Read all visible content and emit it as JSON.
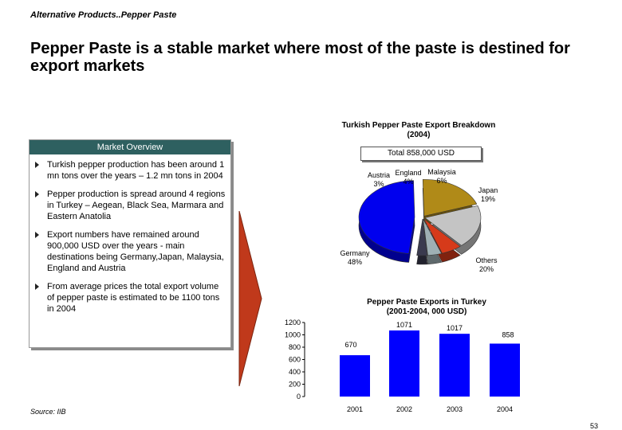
{
  "breadcrumb": "Alternative Products..Pepper Paste",
  "headline": "Pepper Paste is a stable market where most of the paste is destined for export markets",
  "market_overview": {
    "header": "Market Overview",
    "bullets": [
      "Turkish pepper production has been around 1 mn tons over the years – 1.2 mn tons in 2004",
      "Pepper production is spread around 4 regions in Turkey – Aegean, Black Sea, Marmara and Eastern Anatolia",
      "Export numbers have remained around 900,000 USD over the years - main destinations being Germany,Japan, Malaysia, England and Austria",
      "From average prices the total export volume of pepper paste is estimated to be 1100 tons in 2004"
    ]
  },
  "colors": {
    "panel_header": "#2e6060",
    "arrow": "#c0391b",
    "bar": "#0000ff",
    "pie": [
      "#0000ee",
      "#b08a18",
      "#c4c4c4",
      "#d63a1a",
      "#9fb0b4",
      "#3a3a4e"
    ]
  },
  "chart_data": [
    {
      "type": "pie",
      "title": "Turkish Pepper Paste Export Breakdown",
      "subtitle": "(2004)",
      "total_label": "Total 858,000 USD",
      "slices": [
        {
          "name": "Germany",
          "value": 48,
          "label": "48%"
        },
        {
          "name": "Others",
          "value": 20,
          "label": "20%"
        },
        {
          "name": "Japan",
          "value": 19,
          "label": "19%"
        },
        {
          "name": "Malaysia",
          "value": 6,
          "label": "6%"
        },
        {
          "name": "England",
          "value": 4,
          "label": "4%"
        },
        {
          "name": "Austria",
          "value": 3,
          "label": "3%"
        }
      ]
    },
    {
      "type": "bar",
      "title": "Pepper Paste Exports in Turkey",
      "subtitle": "(2001-2004, 000 USD)",
      "categories": [
        "2001",
        "2002",
        "2003",
        "2004"
      ],
      "values": [
        670,
        1071,
        1017,
        858
      ],
      "ylim": [
        0,
        1200
      ],
      "yticks": [
        "0",
        "200",
        "400",
        "600",
        "800",
        "1000",
        "1200"
      ],
      "grid": false
    }
  ],
  "source": "Source: IIB",
  "page_number": "53"
}
